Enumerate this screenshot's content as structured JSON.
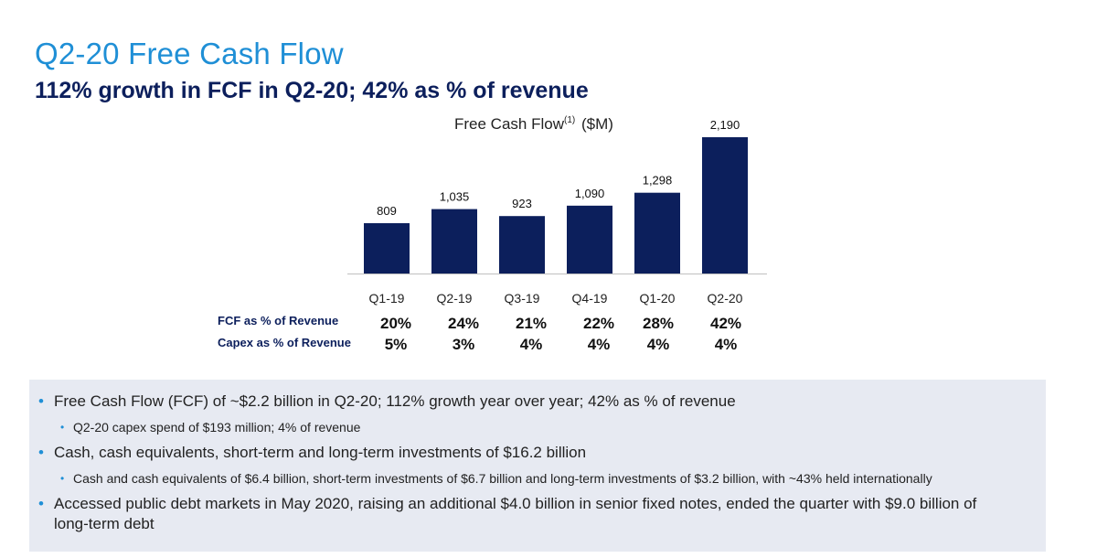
{
  "header": {
    "title": "Q2-20 Free Cash Flow",
    "subtitle": "112% growth in FCF in Q2-20; 42% as % of revenue"
  },
  "chart_data": {
    "type": "bar",
    "title": "Free Cash Flow",
    "title_superscript": "(1)",
    "title_unit": "($M)",
    "categories": [
      "Q1-19",
      "Q2-19",
      "Q3-19",
      "Q4-19",
      "Q1-20",
      "Q2-20"
    ],
    "values": [
      809,
      1035,
      923,
      1090,
      1298,
      2190
    ],
    "value_labels": [
      "809",
      "1,035",
      "923",
      "1,090",
      "1,298",
      "2,190"
    ],
    "bar_color": "#0c1f5c",
    "ylim": [
      0,
      2190
    ]
  },
  "metrics": {
    "fcf_label": "FCF as % of Revenue",
    "fcf_values": [
      "20%",
      "24%",
      "21%",
      "22%",
      "28%",
      "42%"
    ],
    "capex_label": "Capex as % of Revenue",
    "capex_values": [
      "5%",
      "3%",
      "4%",
      "4%",
      "4%",
      "4%"
    ]
  },
  "bullets": [
    {
      "text": "Free Cash Flow (FCF) of ~$2.2 billion in Q2-20; 112% growth year over year; 42% as % of revenue"
    },
    {
      "text": "Q2-20 capex spend of $193 million; 4% of revenue"
    },
    {
      "text": "Cash, cash equivalents, short-term and long-term investments of $16.2 billion"
    },
    {
      "text": "Cash and cash equivalents of $6.4 billion, short-term investments of $6.7 billion and long-term investments of $3.2 billion, with ~43% held internationally"
    },
    {
      "line1": "Accessed public debt markets in May 2020, raising an additional $4.0 billion in senior fixed notes, ended the quarter with $9.0 billion of",
      "line2": "long-term debt"
    }
  ],
  "colors": {
    "title": "#1f8fd6",
    "subtitle": "#0c1f5c",
    "bullet_dot": "#1f8fd6",
    "panel_bg": "#e7eaf2"
  }
}
